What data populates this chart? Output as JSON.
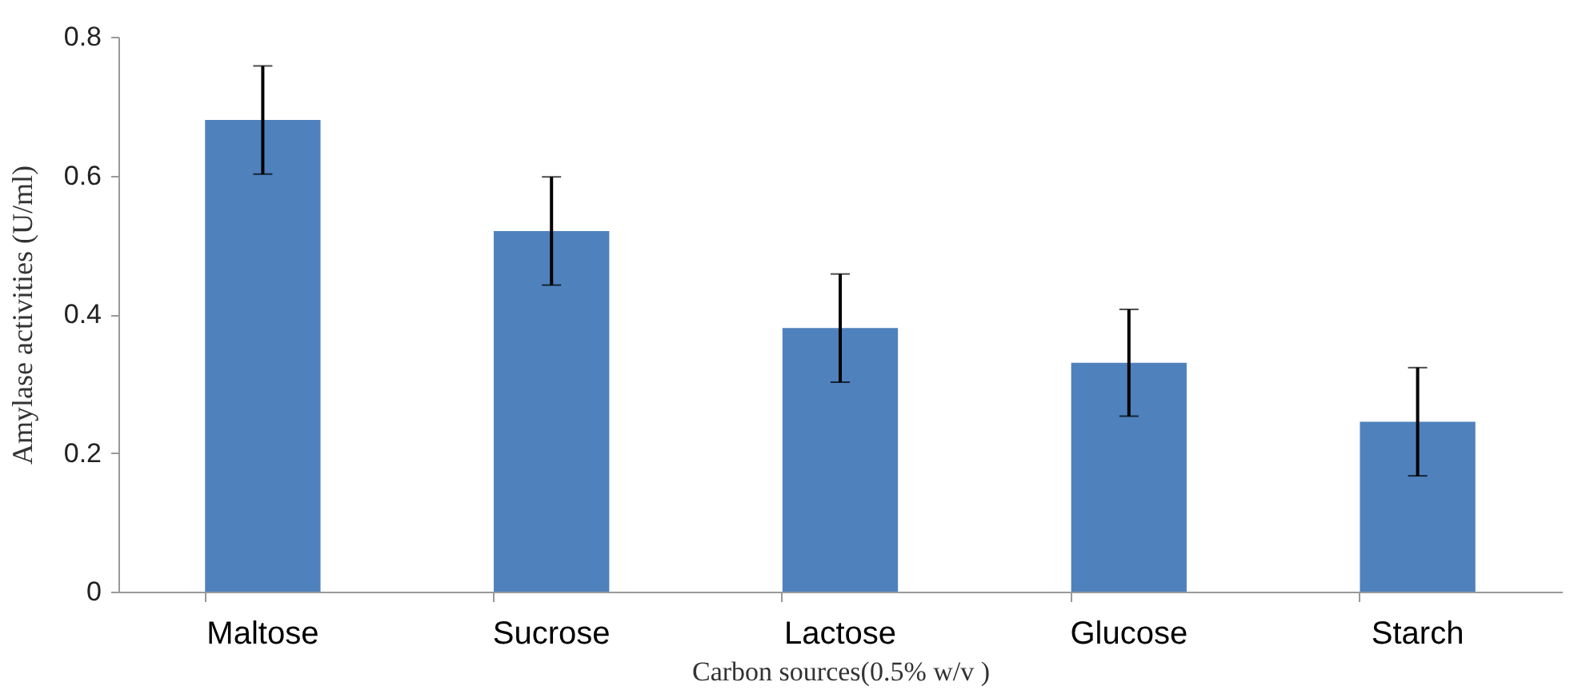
{
  "chart_data": {
    "type": "bar",
    "xlabel": "Carbon sources(0.5% w/v )",
    "ylabel": "Amylase activities (U/ml)",
    "categories": [
      "Maltose",
      "Sucrose",
      "Lactose",
      "Glucose",
      "Starch"
    ],
    "values": [
      0.68,
      0.52,
      0.38,
      0.33,
      0.245
    ],
    "errors": [
      0.078,
      0.078,
      0.078,
      0.077,
      0.078
    ],
    "color": "#4f81bd",
    "ylim": [
      0,
      0.8
    ],
    "yticks": [
      0,
      0.2,
      0.4,
      0.6,
      0.8
    ],
    "grid": false
  }
}
